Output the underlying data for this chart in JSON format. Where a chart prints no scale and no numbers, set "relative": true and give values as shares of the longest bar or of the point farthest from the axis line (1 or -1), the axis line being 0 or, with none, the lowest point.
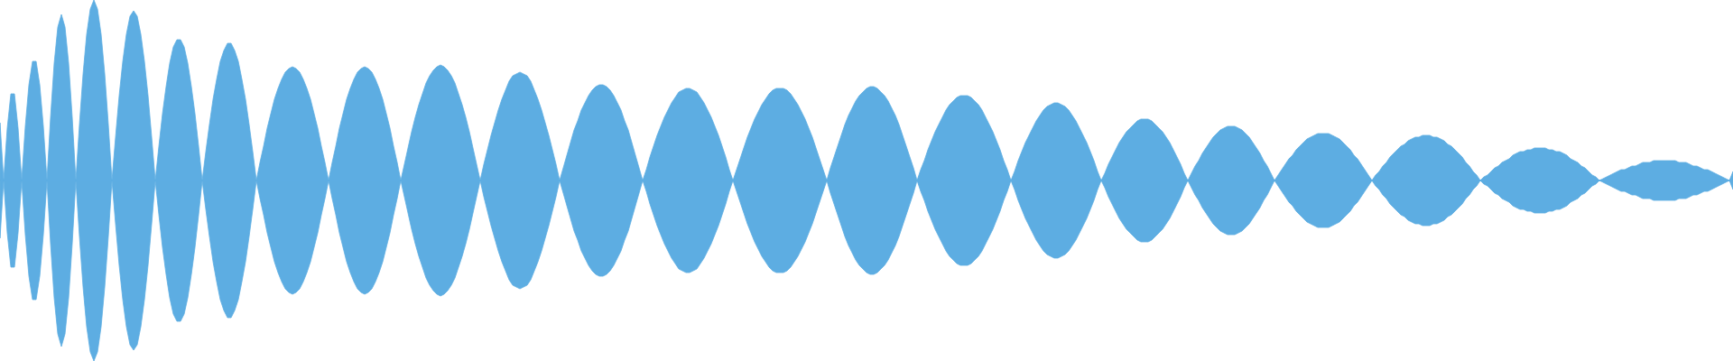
{
  "chart_data": {
    "type": "area",
    "relative": true,
    "categories": [
      null,
      null,
      null,
      null,
      null,
      null,
      null,
      null,
      null,
      null,
      null,
      null,
      null,
      null,
      null,
      null,
      null,
      null,
      null,
      null,
      null,
      null,
      null,
      null,
      null,
      null,
      null,
      null,
      null,
      null,
      null,
      null,
      null,
      null,
      null,
      null,
      null,
      null,
      null,
      null,
      null,
      null,
      null,
      null,
      null,
      null,
      null,
      null,
      null,
      null,
      null,
      null,
      null,
      null,
      null,
      null,
      null,
      null,
      null,
      null,
      null,
      null,
      null,
      null,
      null,
      null,
      null,
      null,
      null,
      null,
      null,
      null,
      null,
      null,
      null,
      null,
      null,
      null,
      null,
      null,
      null,
      null,
      null,
      null,
      null,
      null,
      null,
      null,
      null,
      null,
      null,
      null,
      null,
      null,
      null,
      null,
      null,
      null,
      null,
      null,
      null,
      null,
      null,
      null,
      null,
      null,
      null,
      null,
      null,
      null,
      null,
      null,
      null,
      null,
      null,
      null,
      null,
      null,
      null,
      null,
      null,
      null,
      null,
      null,
      null,
      null,
      null,
      null,
      null,
      null,
      null,
      null,
      null,
      null,
      null,
      null,
      null,
      null,
      null,
      null,
      null,
      null,
      null,
      null,
      null,
      null,
      null,
      null,
      null,
      null,
      null,
      null,
      null,
      null,
      null,
      null,
      null,
      null,
      null,
      null,
      null,
      null,
      null,
      null,
      null,
      null,
      null,
      null,
      null,
      null,
      null,
      null,
      null,
      null,
      null,
      null,
      null,
      null,
      null,
      null,
      null,
      null,
      null,
      null,
      null,
      null,
      null,
      null,
      null,
      null,
      null,
      null,
      null,
      null,
      null,
      null,
      null,
      null,
      null,
      null,
      null,
      null,
      null,
      null,
      null,
      null,
      null,
      null,
      null,
      null,
      null,
      null,
      null,
      null,
      null,
      null,
      null,
      null,
      null,
      null,
      null,
      null,
      null,
      null,
      null,
      null,
      null,
      null,
      null,
      null,
      null,
      null,
      null,
      null,
      null,
      null,
      null,
      null,
      null,
      null,
      null,
      null,
      null,
      null,
      null,
      null,
      null,
      null,
      null,
      null,
      null,
      null,
      null,
      null,
      null,
      null,
      null,
      null,
      null,
      null,
      null,
      null,
      null,
      null,
      null,
      null,
      null,
      null,
      null,
      null,
      null,
      null,
      null,
      null,
      null,
      null,
      null,
      null,
      null,
      null,
      null,
      null,
      null,
      null,
      null,
      null,
      null,
      null,
      null,
      null,
      null,
      null,
      null,
      null,
      null,
      null,
      null,
      null,
      null,
      null,
      null,
      null,
      null,
      null,
      null,
      null,
      null,
      null,
      null,
      null,
      null,
      null,
      null,
      null,
      null,
      null,
      null,
      null,
      null,
      null,
      null,
      null,
      null,
      null,
      null,
      null,
      null,
      null,
      null,
      null,
      null,
      null,
      null,
      null,
      null,
      null,
      null,
      null,
      null,
      null,
      null,
      null,
      null,
      null,
      null,
      null,
      null,
      null,
      null,
      null,
      null,
      null,
      null,
      null,
      null,
      null,
      null,
      null,
      null,
      null,
      null,
      null,
      null,
      null,
      null,
      null,
      null,
      null,
      null,
      null,
      null,
      null,
      null,
      null,
      null,
      null,
      null,
      null,
      null,
      null,
      null,
      null,
      null,
      null,
      null,
      null,
      null,
      null,
      null,
      null,
      null,
      null,
      null,
      null,
      null,
      null,
      null,
      null,
      null,
      null,
      null,
      null,
      null,
      null,
      null,
      null,
      null,
      null,
      null,
      null,
      null,
      null,
      null,
      null,
      null,
      null,
      null,
      null,
      null,
      null,
      null,
      null,
      null,
      null,
      null,
      null,
      null,
      null,
      null,
      null,
      null,
      null,
      null,
      null,
      null,
      null,
      null,
      null,
      null,
      null,
      null,
      null,
      null,
      null,
      null,
      null,
      null,
      null,
      null,
      null,
      null,
      null,
      null,
      null,
      null,
      null,
      null,
      null,
      null,
      null,
      null,
      null,
      null,
      null,
      null,
      null,
      null,
      null,
      null,
      null,
      null,
      null,
      null,
      null,
      null,
      null,
      null,
      null,
      null,
      null,
      null
    ],
    "series": [
      {
        "color": "#5dade2",
        "values": [
          0.32,
          0,
          0.29,
          0.48,
          0.48,
          0.29,
          0,
          0.3,
          0.53,
          0.66,
          0.66,
          0.53,
          0.3,
          0,
          0.35,
          0.65,
          0.85,
          0.92,
          0.85,
          0.65,
          0.35,
          0,
          0.31,
          0.59,
          0.81,
          0.95,
          1,
          0.95,
          0.81,
          0.59,
          0.31,
          0,
          0.24,
          0.47,
          0.66,
          0.81,
          0.91,
          0.94,
          0.91,
          0.81,
          0.66,
          0.47,
          0.24,
          0,
          0.19,
          0.37,
          0.52,
          0.65,
          0.74,
          0.78,
          0.78,
          0.74,
          0.65,
          0.52,
          0.37,
          0.19,
          0,
          0.16,
          0.31,
          0.45,
          0.56,
          0.66,
          0.72,
          0.76,
          0.76,
          0.72,
          0.66,
          0.56,
          0.45,
          0.31,
          0.16,
          0,
          0.1,
          0.19,
          0.29,
          0.37,
          0.45,
          0.51,
          0.56,
          0.6,
          0.62,
          0.63,
          0.62,
          0.6,
          0.56,
          0.51,
          0.45,
          0.37,
          0.29,
          0.19,
          0.1,
          0,
          0.1,
          0.19,
          0.29,
          0.37,
          0.45,
          0.51,
          0.56,
          0.6,
          0.62,
          0.63,
          0.62,
          0.6,
          0.56,
          0.51,
          0.45,
          0.37,
          0.29,
          0.19,
          0.1,
          0,
          0.09,
          0.18,
          0.27,
          0.35,
          0.42,
          0.48,
          0.54,
          0.58,
          0.61,
          0.63,
          0.64,
          0.63,
          0.61,
          0.58,
          0.54,
          0.48,
          0.42,
          0.35,
          0.27,
          0.18,
          0.09,
          0,
          0.09,
          0.17,
          0.25,
          0.32,
          0.39,
          0.45,
          0.5,
          0.55,
          0.58,
          0.59,
          0.6,
          0.59,
          0.58,
          0.55,
          0.5,
          0.45,
          0.39,
          0.32,
          0.25,
          0.17,
          0.09,
          0,
          0.07,
          0.14,
          0.21,
          0.28,
          0.33,
          0.39,
          0.43,
          0.47,
          0.5,
          0.52,
          0.53,
          0.53,
          0.52,
          0.5,
          0.47,
          0.43,
          0.39,
          0.33,
          0.28,
          0.21,
          0.14,
          0.07,
          0,
          0.06,
          0.13,
          0.19,
          0.25,
          0.3,
          0.35,
          0.39,
          0.43,
          0.46,
          0.49,
          0.5,
          0.51,
          0.51,
          0.5,
          0.49,
          0.46,
          0.43,
          0.39,
          0.35,
          0.3,
          0.25,
          0.19,
          0.13,
          0.06,
          0,
          0.06,
          0.12,
          0.18,
          0.24,
          0.29,
          0.34,
          0.38,
          0.42,
          0.45,
          0.48,
          0.5,
          0.51,
          0.51,
          0.51,
          0.5,
          0.48,
          0.45,
          0.42,
          0.38,
          0.34,
          0.29,
          0.24,
          0.18,
          0.12,
          0.06,
          0,
          0.07,
          0.13,
          0.19,
          0.25,
          0.31,
          0.36,
          0.4,
          0.44,
          0.47,
          0.49,
          0.51,
          0.52,
          0.52,
          0.51,
          0.49,
          0.47,
          0.44,
          0.4,
          0.36,
          0.31,
          0.25,
          0.19,
          0.13,
          0.07,
          0,
          0.06,
          0.11,
          0.17,
          0.22,
          0.27,
          0.31,
          0.35,
          0.39,
          0.42,
          0.44,
          0.46,
          0.47,
          0.47,
          0.47,
          0.46,
          0.44,
          0.42,
          0.39,
          0.35,
          0.31,
          0.27,
          0.22,
          0.17,
          0.11,
          0.06,
          0,
          0.05,
          0.11,
          0.16,
          0.21,
          0.25,
          0.29,
          0.33,
          0.36,
          0.39,
          0.41,
          0.42,
          0.43,
          0.43,
          0.42,
          0.41,
          0.39,
          0.36,
          0.33,
          0.29,
          0.25,
          0.21,
          0.16,
          0.11,
          0.05,
          0,
          0.04,
          0.09,
          0.13,
          0.17,
          0.21,
          0.24,
          0.27,
          0.29,
          0.31,
          0.33,
          0.34,
          0.34,
          0.34,
          0.33,
          0.31,
          0.29,
          0.27,
          0.24,
          0.21,
          0.17,
          0.13,
          0.09,
          0.04,
          0,
          0.04,
          0.08,
          0.11,
          0.15,
          0.18,
          0.21,
          0.24,
          0.26,
          0.28,
          0.29,
          0.3,
          0.3,
          0.3,
          0.29,
          0.28,
          0.26,
          0.24,
          0.21,
          0.18,
          0.15,
          0.11,
          0.08,
          0.04,
          0,
          0.03,
          0.06,
          0.09,
          0.12,
          0.14,
          0.17,
          0.19,
          0.21,
          0.23,
          0.24,
          0.25,
          0.26,
          0.26,
          0.26,
          0.26,
          0.25,
          0.24,
          0.23,
          0.21,
          0.19,
          0.17,
          0.14,
          0.12,
          0.09,
          0.06,
          0.03,
          0,
          0.03,
          0.05,
          0.08,
          0.1,
          0.13,
          0.15,
          0.17,
          0.19,
          0.2,
          0.22,
          0.23,
          0.24,
          0.24,
          0.25,
          0.25,
          0.25,
          0.24,
          0.24,
          0.23,
          0.22,
          0.2,
          0.19,
          0.17,
          0.15,
          0.13,
          0.1,
          0.08,
          0.05,
          0.03,
          0,
          0.02,
          0.03,
          0.05,
          0.07,
          0.08,
          0.1,
          0.11,
          0.12,
          0.14,
          0.15,
          0.16,
          0.16,
          0.17,
          0.17,
          0.18,
          0.18,
          0.18,
          0.18,
          0.17,
          0.17,
          0.16,
          0.16,
          0.15,
          0.14,
          0.12,
          0.11,
          0.1,
          0.08,
          0.07,
          0.05,
          0.03,
          0.02,
          0,
          0.01,
          0.02,
          0.03,
          0.04,
          0.05,
          0.06,
          0.06,
          0.07,
          0.08,
          0.08,
          0.09,
          0.1,
          0.1,
          0.1,
          0.11,
          0.11,
          0.11,
          0.11,
          0.11,
          0.11,
          0.11,
          0.1,
          0.1,
          0.1,
          0.09,
          0.08,
          0.08,
          0.07,
          0.06,
          0.06,
          0.05,
          0.04,
          0.03,
          0.02,
          0.01,
          0,
          0.05
        ]
      },
      {
        "color": "#5dade2",
        "values": [
          -0.32,
          0,
          -0.29,
          -0.48,
          -0.48,
          -0.29,
          0,
          -0.3,
          -0.53,
          -0.66,
          -0.66,
          -0.53,
          -0.3,
          0,
          -0.35,
          -0.65,
          -0.85,
          -0.92,
          -0.85,
          -0.65,
          -0.35,
          0,
          -0.31,
          -0.59,
          -0.81,
          -0.95,
          -1,
          -0.95,
          -0.81,
          -0.59,
          -0.31,
          0,
          -0.24,
          -0.47,
          -0.66,
          -0.81,
          -0.91,
          -0.94,
          -0.91,
          -0.81,
          -0.66,
          -0.47,
          -0.24,
          0,
          -0.19,
          -0.37,
          -0.52,
          -0.65,
          -0.74,
          -0.78,
          -0.78,
          -0.74,
          -0.65,
          -0.52,
          -0.37,
          -0.19,
          0,
          -0.16,
          -0.31,
          -0.45,
          -0.56,
          -0.66,
          -0.72,
          -0.76,
          -0.76,
          -0.72,
          -0.66,
          -0.56,
          -0.45,
          -0.31,
          -0.16,
          0,
          -0.1,
          -0.19,
          -0.29,
          -0.37,
          -0.45,
          -0.51,
          -0.56,
          -0.6,
          -0.62,
          -0.63,
          -0.62,
          -0.6,
          -0.56,
          -0.51,
          -0.45,
          -0.37,
          -0.29,
          -0.19,
          -0.1,
          0,
          -0.1,
          -0.19,
          -0.29,
          -0.37,
          -0.45,
          -0.51,
          -0.56,
          -0.6,
          -0.62,
          -0.63,
          -0.62,
          -0.6,
          -0.56,
          -0.51,
          -0.45,
          -0.37,
          -0.29,
          -0.19,
          -0.1,
          0,
          -0.09,
          -0.18,
          -0.27,
          -0.35,
          -0.42,
          -0.48,
          -0.54,
          -0.58,
          -0.61,
          -0.63,
          -0.64,
          -0.63,
          -0.61,
          -0.58,
          -0.54,
          -0.48,
          -0.42,
          -0.35,
          -0.27,
          -0.18,
          -0.09,
          0,
          -0.09,
          -0.17,
          -0.25,
          -0.32,
          -0.39,
          -0.45,
          -0.5,
          -0.55,
          -0.58,
          -0.59,
          -0.6,
          -0.59,
          -0.58,
          -0.55,
          -0.5,
          -0.45,
          -0.39,
          -0.32,
          -0.25,
          -0.17,
          -0.09,
          0,
          -0.07,
          -0.14,
          -0.21,
          -0.28,
          -0.33,
          -0.39,
          -0.43,
          -0.47,
          -0.5,
          -0.52,
          -0.53,
          -0.53,
          -0.52,
          -0.5,
          -0.47,
          -0.43,
          -0.39,
          -0.33,
          -0.28,
          -0.21,
          -0.14,
          -0.07,
          0,
          -0.06,
          -0.13,
          -0.19,
          -0.25,
          -0.3,
          -0.35,
          -0.39,
          -0.43,
          -0.46,
          -0.49,
          -0.5,
          -0.51,
          -0.51,
          -0.5,
          -0.49,
          -0.46,
          -0.43,
          -0.39,
          -0.35,
          -0.3,
          -0.25,
          -0.19,
          -0.13,
          -0.06,
          0,
          -0.06,
          -0.12,
          -0.18,
          -0.24,
          -0.29,
          -0.34,
          -0.38,
          -0.42,
          -0.45,
          -0.48,
          -0.5,
          -0.51,
          -0.51,
          -0.51,
          -0.5,
          -0.48,
          -0.45,
          -0.42,
          -0.38,
          -0.34,
          -0.29,
          -0.24,
          -0.18,
          -0.12,
          -0.06,
          0,
          -0.07,
          -0.13,
          -0.19,
          -0.25,
          -0.31,
          -0.36,
          -0.4,
          -0.44,
          -0.47,
          -0.49,
          -0.51,
          -0.52,
          -0.52,
          -0.51,
          -0.49,
          -0.47,
          -0.44,
          -0.4,
          -0.36,
          -0.31,
          -0.25,
          -0.19,
          -0.13,
          -0.07,
          0,
          -0.06,
          -0.11,
          -0.17,
          -0.22,
          -0.27,
          -0.31,
          -0.35,
          -0.39,
          -0.42,
          -0.44,
          -0.46,
          -0.47,
          -0.47,
          -0.47,
          -0.46,
          -0.44,
          -0.42,
          -0.39,
          -0.35,
          -0.31,
          -0.27,
          -0.22,
          -0.17,
          -0.11,
          -0.06,
          0,
          -0.05,
          -0.11,
          -0.16,
          -0.21,
          -0.25,
          -0.29,
          -0.33,
          -0.36,
          -0.39,
          -0.41,
          -0.42,
          -0.43,
          -0.43,
          -0.42,
          -0.41,
          -0.39,
          -0.36,
          -0.33,
          -0.29,
          -0.25,
          -0.21,
          -0.16,
          -0.11,
          -0.05,
          0,
          -0.04,
          -0.09,
          -0.13,
          -0.17,
          -0.21,
          -0.24,
          -0.27,
          -0.29,
          -0.31,
          -0.33,
          -0.34,
          -0.34,
          -0.34,
          -0.33,
          -0.31,
          -0.29,
          -0.27,
          -0.24,
          -0.21,
          -0.17,
          -0.13,
          -0.09,
          -0.04,
          0,
          -0.04,
          -0.08,
          -0.11,
          -0.15,
          -0.18,
          -0.21,
          -0.24,
          -0.26,
          -0.28,
          -0.29,
          -0.3,
          -0.3,
          -0.3,
          -0.29,
          -0.28,
          -0.26,
          -0.24,
          -0.21,
          -0.18,
          -0.15,
          -0.11,
          -0.08,
          -0.04,
          0,
          -0.03,
          -0.06,
          -0.09,
          -0.12,
          -0.14,
          -0.17,
          -0.19,
          -0.21,
          -0.23,
          -0.24,
          -0.25,
          -0.26,
          -0.26,
          -0.26,
          -0.26,
          -0.25,
          -0.24,
          -0.23,
          -0.21,
          -0.19,
          -0.17,
          -0.14,
          -0.12,
          -0.09,
          -0.06,
          -0.03,
          0,
          -0.03,
          -0.05,
          -0.08,
          -0.1,
          -0.13,
          -0.15,
          -0.17,
          -0.19,
          -0.2,
          -0.22,
          -0.23,
          -0.24,
          -0.24,
          -0.25,
          -0.25,
          -0.25,
          -0.24,
          -0.24,
          -0.23,
          -0.22,
          -0.2,
          -0.19,
          -0.17,
          -0.15,
          -0.13,
          -0.1,
          -0.08,
          -0.05,
          -0.03,
          0,
          -0.02,
          -0.03,
          -0.05,
          -0.07,
          -0.08,
          -0.1,
          -0.11,
          -0.12,
          -0.14,
          -0.15,
          -0.16,
          -0.16,
          -0.17,
          -0.17,
          -0.18,
          -0.18,
          -0.18,
          -0.18,
          -0.17,
          -0.17,
          -0.16,
          -0.16,
          -0.15,
          -0.14,
          -0.12,
          -0.11,
          -0.1,
          -0.08,
          -0.07,
          -0.05,
          -0.03,
          -0.02,
          0,
          -0.01,
          -0.02,
          -0.03,
          -0.04,
          -0.05,
          -0.06,
          -0.06,
          -0.07,
          -0.08,
          -0.08,
          -0.09,
          -0.1,
          -0.1,
          -0.1,
          -0.11,
          -0.11,
          -0.11,
          -0.11,
          -0.11,
          -0.11,
          -0.11,
          -0.1,
          -0.1,
          -0.1,
          -0.09,
          -0.08,
          -0.08,
          -0.07,
          -0.06,
          -0.06,
          -0.05,
          -0.04,
          -0.03,
          -0.02,
          -0.01,
          0,
          -0.05
        ]
      }
    ]
  }
}
